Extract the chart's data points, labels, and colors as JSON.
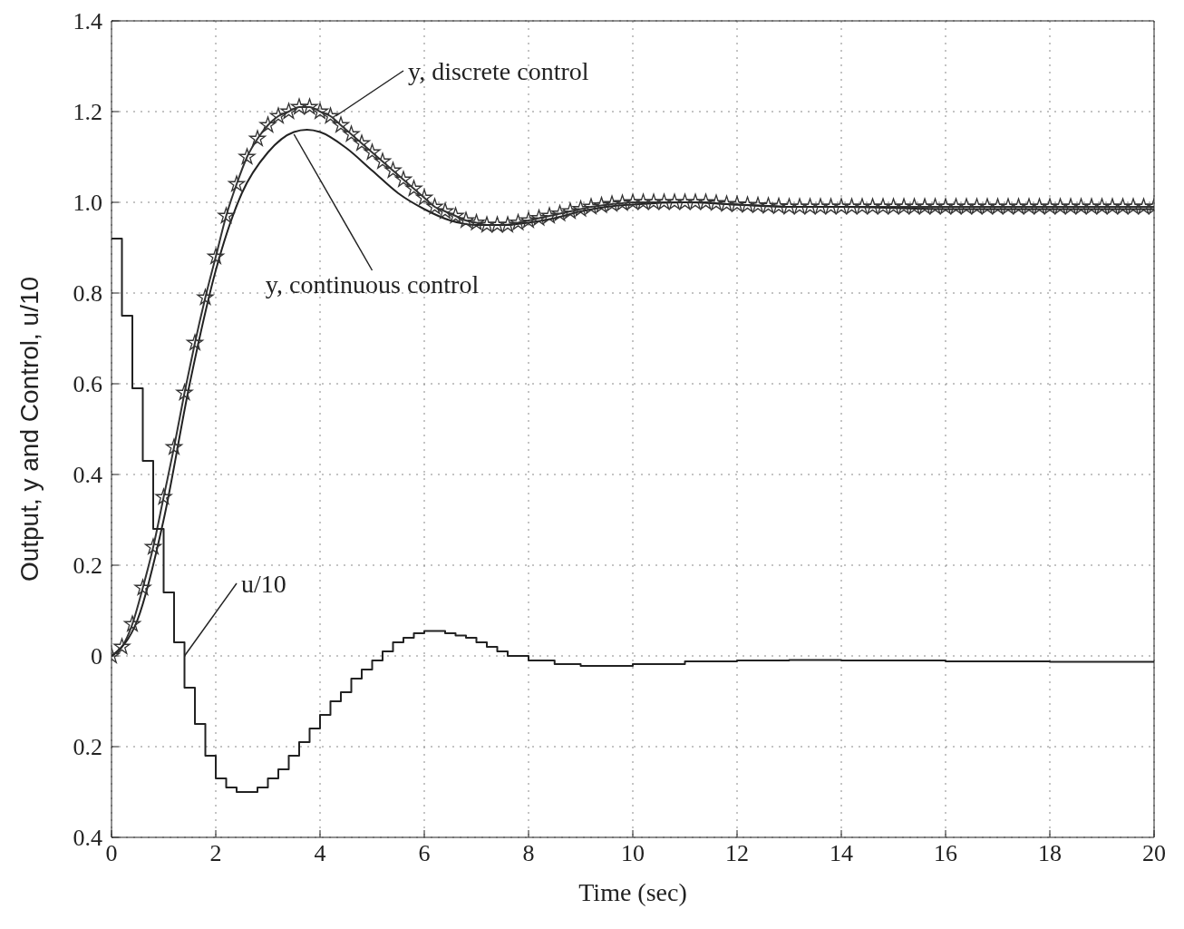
{
  "chart_data": {
    "type": "line",
    "xlabel": "Time (sec)",
    "ylabel": "Output, y and Control, u/10",
    "xlim": [
      0,
      20
    ],
    "xticks": [
      0,
      2,
      4,
      6,
      8,
      10,
      12,
      14,
      16,
      18,
      20
    ],
    "ylim": [
      -0.4,
      1.4
    ],
    "yticks": [
      {
        "value": -0.4,
        "label": "0.4"
      },
      {
        "value": -0.2,
        "label": "0.2"
      },
      0,
      0.2,
      0.4,
      0.6,
      0.8,
      {
        "value": 1,
        "label": "1.0"
      },
      1.2,
      1.4
    ],
    "grid": true,
    "legend": false,
    "line_style": "solid",
    "series": [
      {
        "marker": "star",
        "color": "#333333",
        "x": [
          0,
          0.2,
          0.4,
          0.6,
          0.8,
          1,
          1.2,
          1.4,
          1.6,
          1.8,
          2,
          2.2,
          2.4,
          2.6,
          2.8,
          3,
          3.2,
          3.4,
          3.6,
          3.8,
          4,
          4.2,
          4.4,
          4.6,
          4.8,
          5,
          5.2,
          5.4,
          5.6,
          5.8,
          6,
          6.2,
          6.4,
          6.6,
          6.8,
          7,
          7.2,
          7.4,
          7.6,
          7.8,
          8,
          8.2,
          8.4,
          8.6,
          8.8,
          9,
          9.2,
          9.4,
          9.6,
          9.8,
          10,
          10.2,
          10.4,
          10.6,
          10.8,
          11,
          11.2,
          11.4,
          11.6,
          11.8,
          12,
          12.2,
          12.4,
          12.6,
          12.8,
          13,
          13.2,
          13.4,
          13.6,
          13.8,
          14,
          14.2,
          14.4,
          14.6,
          14.8,
          15,
          15.2,
          15.4,
          15.6,
          15.8,
          16,
          16.2,
          16.4,
          16.6,
          16.8,
          17,
          17.2,
          17.4,
          17.6,
          17.8,
          18,
          18.2,
          18.4,
          18.6,
          18.8,
          19,
          19.2,
          19.4,
          19.6,
          19.8,
          20
        ],
        "values": [
          0,
          0.02,
          0.07,
          0.15,
          0.24,
          0.35,
          0.46,
          0.58,
          0.69,
          0.79,
          0.88,
          0.97,
          1.04,
          1.1,
          1.14,
          1.17,
          1.19,
          1.2,
          1.21,
          1.21,
          1.2,
          1.19,
          1.17,
          1.15,
          1.13,
          1.11,
          1.09,
          1.07,
          1.05,
          1.03,
          1.01,
          0.99,
          0.98,
          0.97,
          0.96,
          0.955,
          0.95,
          0.95,
          0.95,
          0.955,
          0.96,
          0.965,
          0.97,
          0.975,
          0.98,
          0.985,
          0.99,
          0.993,
          0.996,
          0.998,
          1,
          1,
          1,
          1,
          1,
          1,
          1,
          1,
          0.998,
          0.996,
          0.995,
          0.994,
          0.993,
          0.992,
          0.991,
          0.99,
          0.99,
          0.99,
          0.99,
          0.99,
          0.99,
          0.99,
          0.99,
          0.99,
          0.99,
          0.99,
          0.99,
          0.99,
          0.99,
          0.99,
          0.99,
          0.99,
          0.99,
          0.99,
          0.99,
          0.99,
          0.99,
          0.99,
          0.99,
          0.99,
          0.99,
          0.99,
          0.99,
          0.99,
          0.99,
          0.99,
          0.99,
          0.99,
          0.99,
          0.99,
          0.99
        ]
      },
      {
        "marker": "none",
        "color": "#222222",
        "x": [
          0,
          0.5,
          1,
          1.5,
          2,
          2.5,
          3,
          3.5,
          3.75,
          4,
          4.5,
          5,
          5.5,
          6,
          6.5,
          7,
          7.5,
          8,
          8.5,
          9,
          9.5,
          10,
          11,
          12,
          13,
          14,
          16,
          18,
          20
        ],
        "values": [
          0,
          0.08,
          0.3,
          0.6,
          0.85,
          1.02,
          1.11,
          1.155,
          1.16,
          1.155,
          1.12,
          1.07,
          1.02,
          0.985,
          0.96,
          0.95,
          0.95,
          0.955,
          0.965,
          0.98,
          0.99,
          0.995,
          1,
          0.995,
          0.99,
          0.99,
          0.985,
          0.985,
          0.985
        ]
      },
      {
        "type": "step",
        "marker": "none",
        "color": "#222222",
        "x": [
          0,
          0.2,
          0.4,
          0.6,
          0.8,
          1,
          1.2,
          1.4,
          1.6,
          1.8,
          2,
          2.2,
          2.4,
          2.6,
          2.8,
          3,
          3.2,
          3.4,
          3.6,
          3.8,
          4,
          4.2,
          4.4,
          4.6,
          4.8,
          5,
          5.2,
          5.4,
          5.6,
          5.8,
          6,
          6.2,
          6.4,
          6.6,
          6.8,
          7,
          7.2,
          7.4,
          7.6,
          8,
          8.5,
          9,
          9.5,
          10,
          11,
          12,
          13,
          14,
          16,
          18,
          20
        ],
        "values": [
          0.92,
          0.75,
          0.59,
          0.43,
          0.28,
          0.14,
          0.03,
          -0.07,
          -0.15,
          -0.22,
          -0.27,
          -0.29,
          -0.3,
          -0.3,
          -0.29,
          -0.27,
          -0.25,
          -0.22,
          -0.19,
          -0.16,
          -0.13,
          -0.1,
          -0.08,
          -0.05,
          -0.03,
          -0.01,
          0.01,
          0.03,
          0.04,
          0.05,
          0.055,
          0.055,
          0.05,
          0.045,
          0.04,
          0.03,
          0.02,
          0.01,
          0,
          -0.01,
          -0.018,
          -0.022,
          -0.022,
          -0.018,
          -0.012,
          -0.01,
          -0.009,
          -0.01,
          -0.012,
          -0.013,
          -0.014
        ]
      }
    ],
    "annotations": [
      {
        "text": "y, discrete control",
        "x": 4.3,
        "y": 1.19
      },
      {
        "text": "y, continuous control",
        "x": 3.5,
        "y": 1.15
      },
      {
        "text": "u/10",
        "x": 1.4,
        "y": 0
      }
    ]
  }
}
